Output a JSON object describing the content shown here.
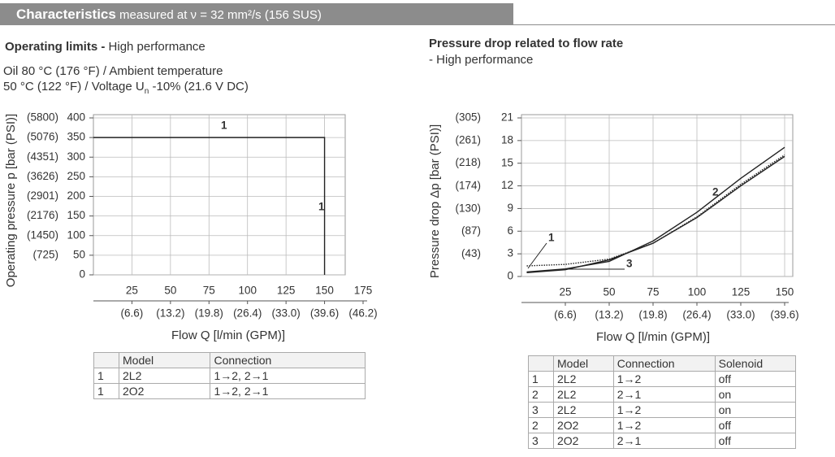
{
  "header": {
    "title": "Characteristics",
    "subtitle": "measured at ν = 32 mm²/s (156 SUS)"
  },
  "chart_data": [
    {
      "type": "line",
      "title": "Operating limits -",
      "title_note": "High performance",
      "subtitle": "Oil 80 °C (176 °F) / Ambient temperature",
      "subtitle_line2": [
        "50 °C (122 °F) / Voltage U",
        "n",
        " -10% (21.6 V DC)"
      ],
      "x_label": "Flow Q [l/min (GPM)]",
      "y_label": "Operating pressure p [bar (PSI)]",
      "x": [
        0,
        150,
        150
      ],
      "series": [
        {
          "color": "#222222",
          "values": [
            350,
            350,
            0
          ]
        }
      ],
      "annotations": [
        "1",
        "1"
      ],
      "xlim": [
        0,
        175
      ],
      "xticks": [
        25,
        50,
        75,
        100,
        125,
        150,
        175
      ],
      "x2lim": [
        0,
        46.2
      ],
      "x2ticks": [
        {
          "value": 6.6,
          "label": "(6.6)"
        },
        {
          "value": 13.2,
          "label": "(13.2)"
        },
        {
          "value": 19.8,
          "label": "(19.8)"
        },
        {
          "value": 26.4,
          "label": "(26.4)"
        },
        {
          "value": 33,
          "label": "(33.0)"
        },
        {
          "value": 39.6,
          "label": "(39.6)"
        },
        {
          "value": 46.2,
          "label": "(46.2)"
        }
      ],
      "ylim": [
        0,
        400
      ],
      "yticks": [
        0,
        50,
        100,
        150,
        200,
        250,
        300,
        350,
        400
      ],
      "y2lim": [
        0,
        5800
      ],
      "y2ticks": [
        {
          "value": 725,
          "label": "(725)"
        },
        {
          "value": 1450,
          "label": "(1450)"
        },
        {
          "value": 2176,
          "label": "(2176)"
        },
        {
          "value": 2901,
          "label": "(2901)"
        },
        {
          "value": 3626,
          "label": "(3626)"
        },
        {
          "value": 4351,
          "label": "(4351)"
        },
        {
          "value": 5076,
          "label": "(5076)"
        },
        {
          "value": 5800,
          "label": "(5800)"
        }
      ],
      "grid": true
    },
    {
      "type": "line",
      "title": "Pressure drop related to flow rate",
      "subtitle": "- High performance",
      "x_label": "Flow Q [l/min (GPM)]",
      "y_label": "Pressure drop Δp [bar (PSI)]",
      "x": [
        3,
        25,
        50,
        75,
        100,
        125,
        150
      ],
      "series": [
        {
          "name": "1",
          "color": "#222222",
          "style": "dotted",
          "values": [
            1.4,
            1.6,
            2.3,
            4.4,
            7.9,
            12.2,
            16.1
          ]
        },
        {
          "name": "2",
          "color": "#222222",
          "style": "solid",
          "values": [
            0.6,
            1.0,
            2.0,
            4.7,
            8.5,
            13.0,
            17.1
          ]
        },
        {
          "name": "3",
          "color": "#222222",
          "style": "solid",
          "values": [
            0.5,
            0.9,
            2.2,
            4.4,
            7.8,
            12.0,
            15.9
          ]
        }
      ],
      "xlim": [
        0,
        150
      ],
      "xticks": [
        25,
        50,
        75,
        100,
        125,
        150
      ],
      "x2lim": [
        0,
        39.6
      ],
      "x2ticks": [
        {
          "value": 6.6,
          "label": "(6.6)"
        },
        {
          "value": 13.2,
          "label": "(13.2)"
        },
        {
          "value": 19.8,
          "label": "(19.8)"
        },
        {
          "value": 26.4,
          "label": "(26.4)"
        },
        {
          "value": 33,
          "label": "(33.0)"
        },
        {
          "value": 39.6,
          "label": "(39.6)"
        }
      ],
      "ylim": [
        0,
        21
      ],
      "yticks": [
        0,
        3,
        6,
        9,
        12,
        15,
        18,
        21
      ],
      "y2lim": [
        0,
        305
      ],
      "y2ticks": [
        {
          "value": 43,
          "label": "(43)"
        },
        {
          "value": 87,
          "label": "(87)"
        },
        {
          "value": 130,
          "label": "(130)"
        },
        {
          "value": 174,
          "label": "(174)"
        },
        {
          "value": 218,
          "label": "(218)"
        },
        {
          "value": 261,
          "label": "(261)"
        },
        {
          "value": 305,
          "label": "(305)"
        }
      ],
      "grid": true
    }
  ],
  "tables": [
    {
      "header": [
        "Model",
        "Connection"
      ],
      "rows": [
        [
          "1",
          "2L2",
          "1→2, 2→1"
        ],
        [
          "1",
          "2O2",
          "1→2, 2→1"
        ]
      ]
    },
    {
      "header": [
        "Model",
        "Connection",
        "Solenoid"
      ],
      "rows": [
        [
          "1",
          "2L2",
          "1→2",
          "off"
        ],
        [
          "2",
          "2L2",
          "2→1",
          "on"
        ],
        [
          "3",
          "2L2",
          "1→2",
          "on"
        ],
        [
          "2",
          "2O2",
          "1→2",
          "off"
        ],
        [
          "3",
          "2O2",
          "2→1",
          "off"
        ]
      ]
    }
  ]
}
